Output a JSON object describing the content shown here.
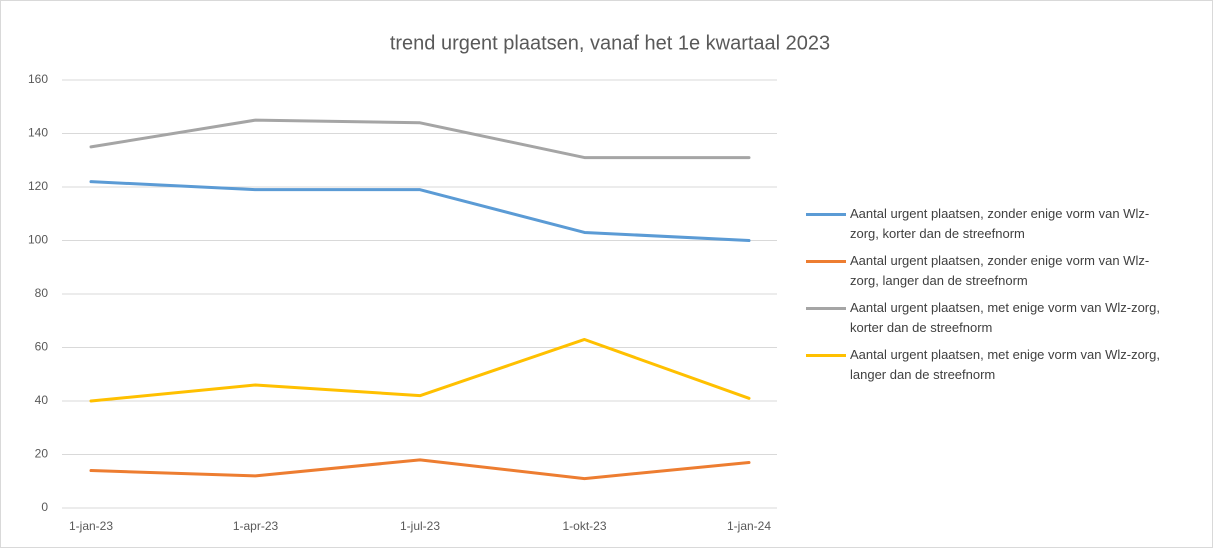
{
  "chart_data": {
    "type": "line",
    "title": "trend urgent plaatsen, vanaf het 1e kwartaal 2023",
    "categories": [
      "1-jan-23",
      "1-apr-23",
      "1-jul-23",
      "1-okt-23",
      "1-jan-24"
    ],
    "series": [
      {
        "name": "Aantal urgent plaatsen, zonder enige vorm van Wlz-zorg, korter dan de streefnorm",
        "color": "#5b9bd5",
        "values": [
          122,
          119,
          119,
          103,
          100
        ]
      },
      {
        "name": "Aantal urgent plaatsen, zonder enige vorm van Wlz-zorg, langer dan de streefnorm",
        "color": "#ed7d31",
        "values": [
          14,
          12,
          18,
          11,
          17
        ]
      },
      {
        "name": "Aantal urgent plaatsen, met enige vorm van Wlz-zorg, korter dan de streefnorm",
        "color": "#a5a5a5",
        "values": [
          135,
          145,
          144,
          131,
          131
        ]
      },
      {
        "name": "Aantal urgent plaatsen, met enige vorm van Wlz-zorg, langer dan de streefnorm",
        "color": "#ffc000",
        "values": [
          40,
          46,
          42,
          63,
          41
        ]
      }
    ],
    "ylim": [
      0,
      160
    ],
    "yticks": [
      0,
      20,
      40,
      60,
      80,
      100,
      120,
      140,
      160
    ],
    "grid": true,
    "legend": "right"
  }
}
